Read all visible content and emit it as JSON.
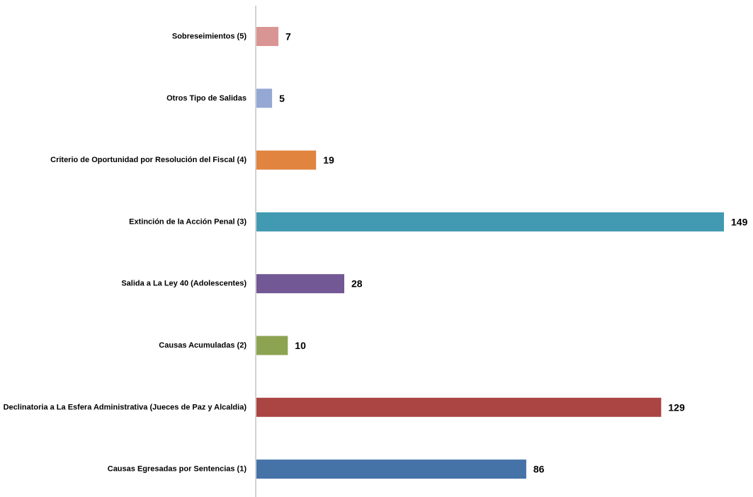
{
  "chart_data": {
    "type": "bar",
    "orientation": "horizontal",
    "categories": [
      "Sobreseimientos (5)",
      "Otros Tipo de Salidas",
      "Criterio de Oportunidad por Resolución del Fiscal (4)",
      "Extinción de la Acción Penal (3)",
      "Salida a La Ley 40 (Adolescentes)",
      "Causas Acumuladas (2)",
      "Declinatoria a La Esfera Administrativa (Jueces de Paz y Alcaldia)",
      "Causas Egresadas por Sentencias (1)"
    ],
    "values": [
      7,
      5,
      19,
      149,
      28,
      10,
      129,
      86
    ],
    "value_labels": [
      "7",
      "5",
      "19",
      "149",
      "28",
      "10",
      "129",
      "86"
    ],
    "colors": [
      "#d99594",
      "#95a8d4",
      "#e0843f",
      "#4299b2",
      "#725894",
      "#8ca451",
      "#aa4543",
      "#4572a7"
    ],
    "xlim": [
      0,
      149
    ],
    "grid": false,
    "legend": "none",
    "title": "",
    "xlabel": "",
    "ylabel": ""
  }
}
